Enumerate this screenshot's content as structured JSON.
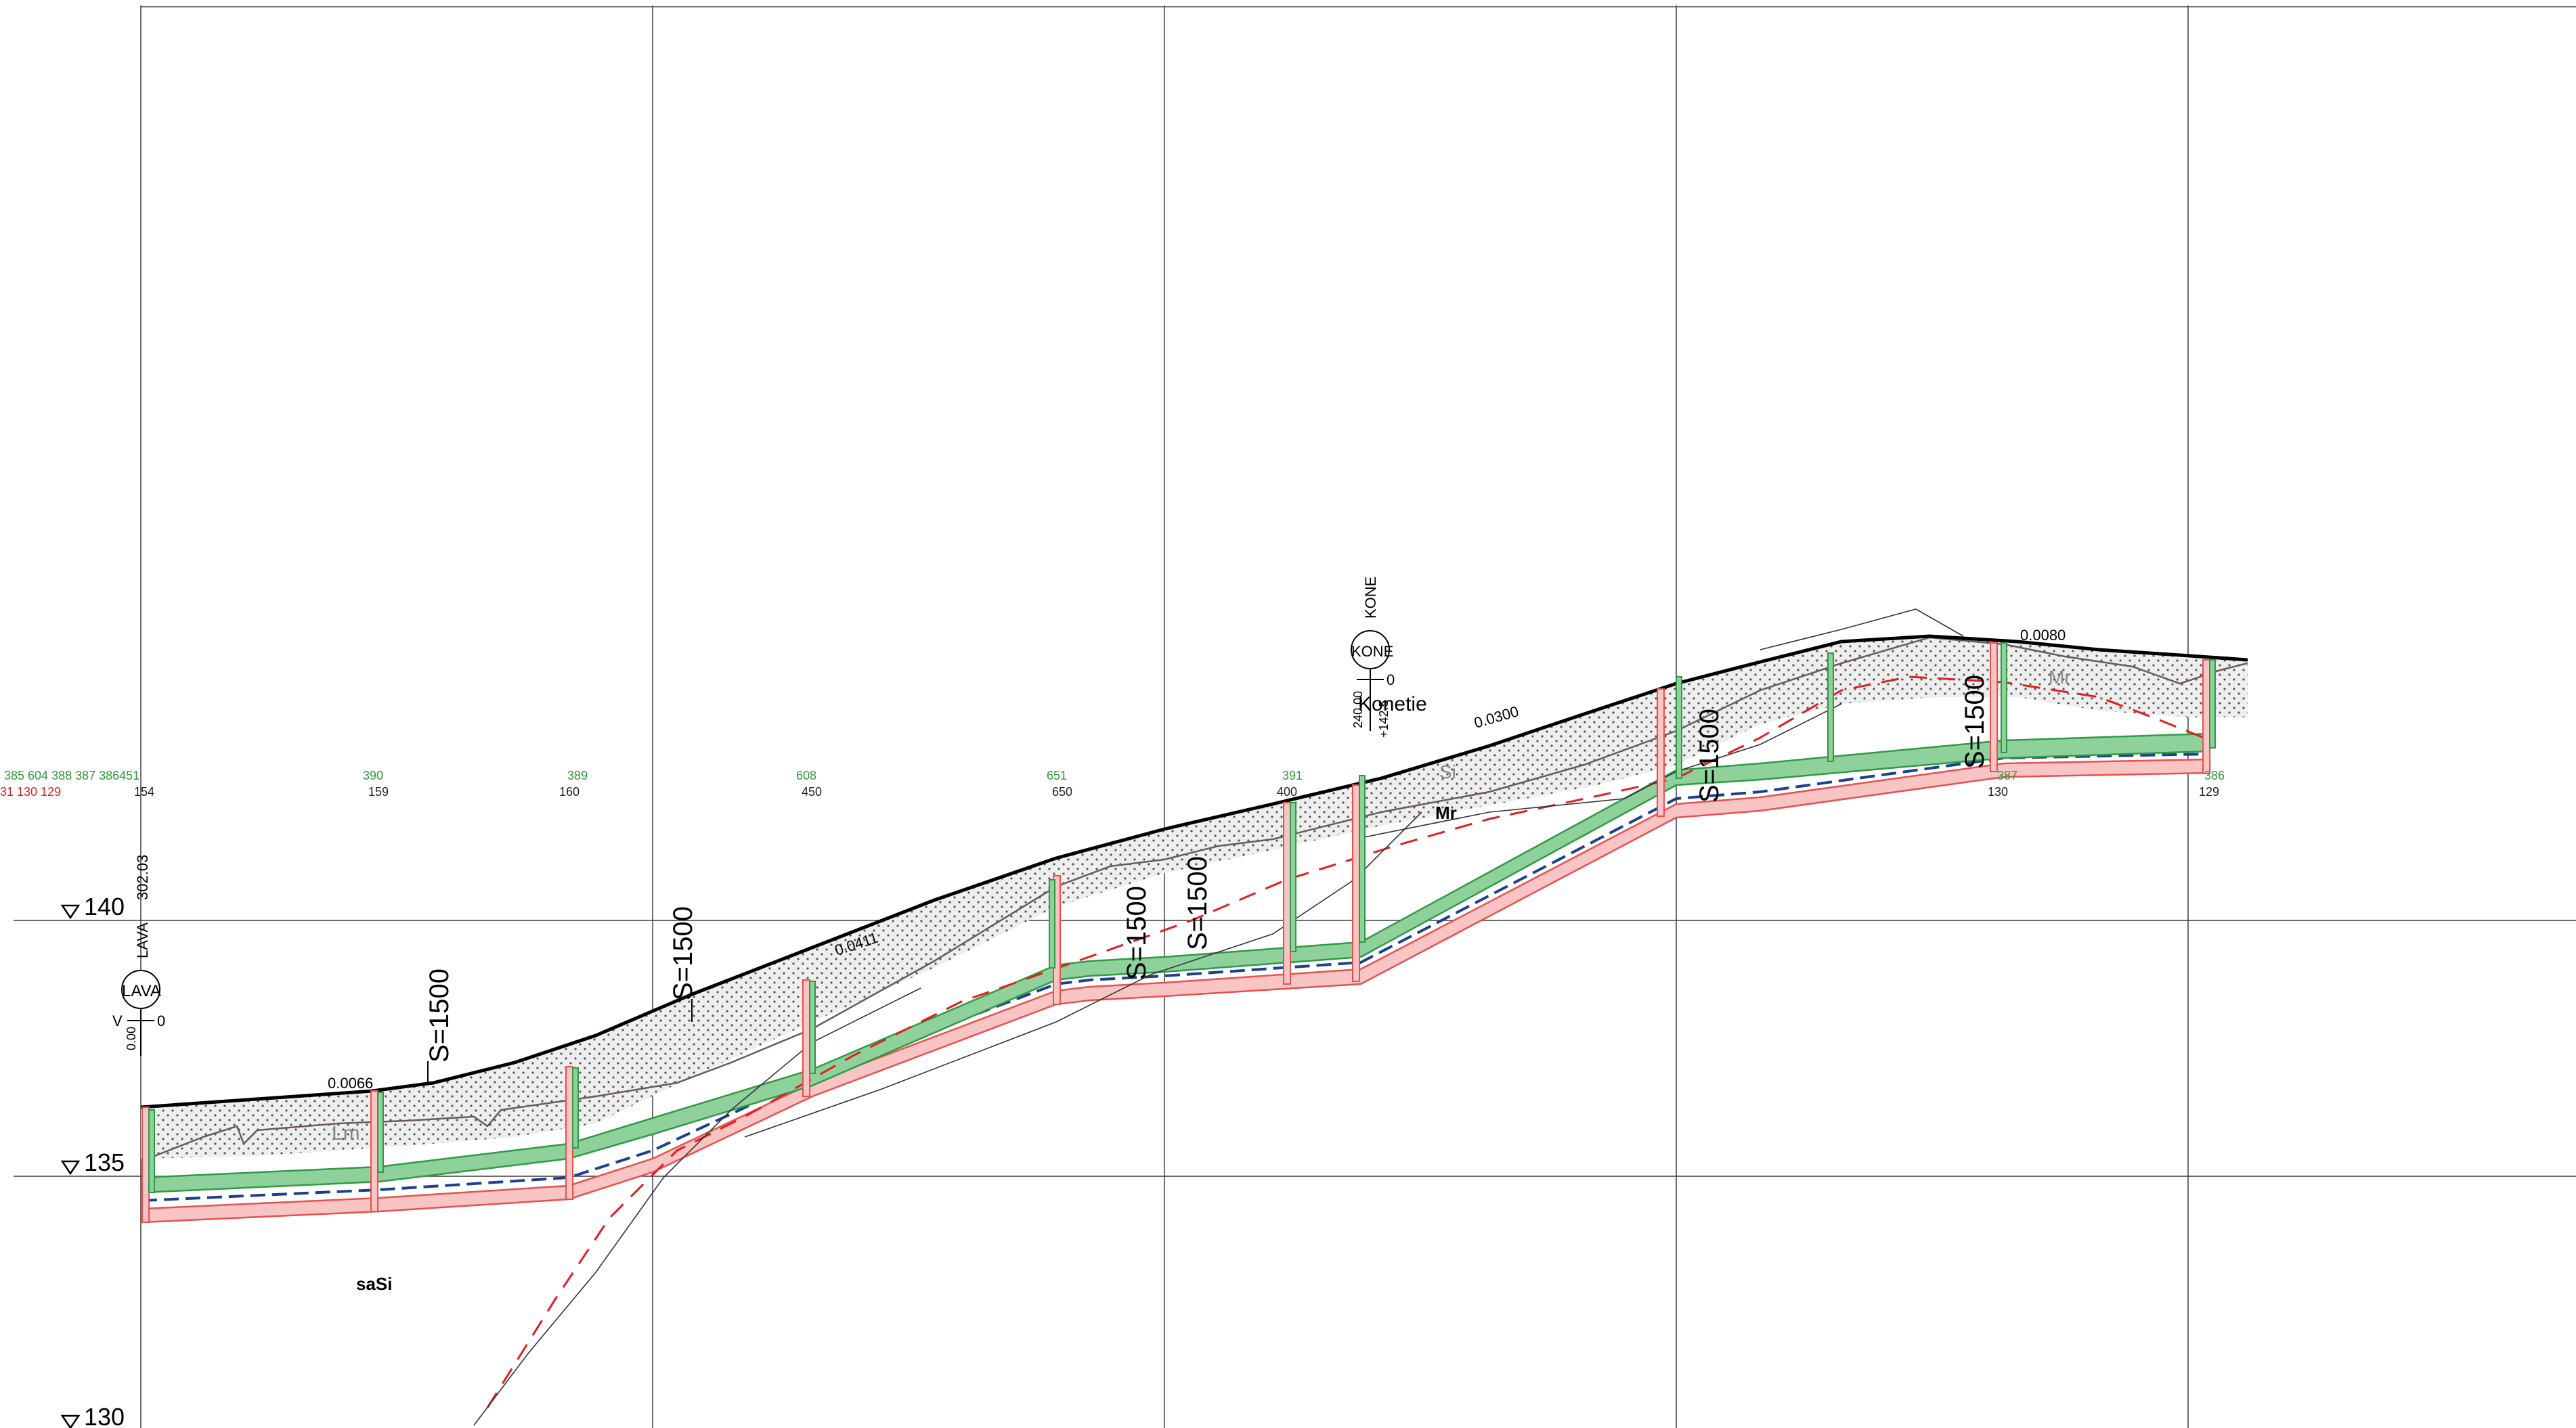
{
  "elevation_labels": [
    "140",
    "135",
    "130"
  ],
  "station_numbers_green": [
    "385 604 388 387 386451",
    "390",
    "389",
    "608",
    "651",
    "391",
    "387",
    "386"
  ],
  "station_numbers_red": [
    "31 130 129"
  ],
  "station_numbers_black": [
    "154",
    "159",
    "160",
    "450",
    "650",
    "400",
    "130",
    "129"
  ],
  "slopes": [
    "0.0066",
    "0.0411",
    "0.0300",
    "0.0080"
  ],
  "curve_labels": [
    "S=1500",
    "S=1500",
    "S=1500",
    "S=1500",
    "S=1500",
    "S=1500"
  ],
  "manholes": {
    "lava": {
      "label": "LAVA",
      "side": "V",
      "value": "0",
      "vertical_label": "LAVA",
      "elevation": "302.03",
      "chainage": "0.00"
    },
    "kone": {
      "label": "KONE",
      "value": "0",
      "vertical_label": "KONE",
      "chainage": "240.00",
      "elevation": "+142.5"
    }
  },
  "soil_labels": {
    "sasi": "saSi",
    "mr": "Mr",
    "si": "Si",
    "lm": "Lm",
    "mr2": "Mr"
  },
  "annotation": "Konetie",
  "colors": {
    "green_fill": "#8fd19a",
    "green_stroke": "#2f9a45",
    "pink_fill": "#f8c4c4",
    "pink_stroke": "#e85050",
    "red_dash": "#e02020",
    "blue_dash": "#1d3f8f",
    "station_green": "#2e9b3a",
    "station_red": "#e02020"
  }
}
